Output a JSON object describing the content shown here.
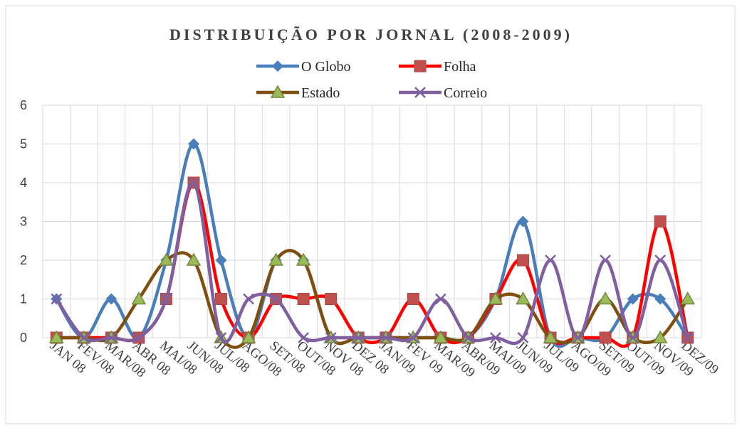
{
  "chart_data": {
    "type": "line",
    "title": "DISTRIBUIÇÃO POR JORNAL   (2008-2009)",
    "categories": [
      "JAN 08",
      "FEV/08",
      "MAR/08",
      "ABR 08",
      "MAI/08",
      "JUN/08",
      "JUL/08",
      "AGO/08",
      "SET/08",
      "OUT/08",
      "NOV 08",
      "DEZ 08",
      "JAN/09",
      "FEV 09",
      "MAR/09",
      "ABR/09",
      "MAI/09",
      "JUN/09",
      "JUL/09",
      "AGO/09",
      "SET/09",
      "OUT/09",
      "NOV/09",
      "DEZ/09"
    ],
    "series": [
      {
        "name": "O Globo",
        "color": "#4a7ebb",
        "marker": "diamond",
        "values": [
          1,
          0,
          1,
          0,
          2,
          5,
          2,
          0,
          2,
          2,
          0,
          0,
          0,
          0,
          0,
          0,
          1,
          3,
          0,
          0,
          0,
          1,
          1,
          0
        ]
      },
      {
        "name": "Folha",
        "color": "#ff0000",
        "marker": "square",
        "values": [
          0,
          0,
          0,
          0,
          1,
          4,
          1,
          0,
          1,
          1,
          1,
          0,
          0,
          1,
          0,
          0,
          1,
          2,
          0,
          0,
          0,
          0,
          3,
          0
        ]
      },
      {
        "name": "Estado",
        "color": "#7f4f10",
        "marker": "triangle",
        "values": [
          0,
          0,
          0,
          1,
          2,
          2,
          0,
          0,
          2,
          2,
          0,
          0,
          0,
          0,
          0,
          0,
          1,
          1,
          0,
          0,
          1,
          0,
          0,
          1
        ]
      },
      {
        "name": "Correio",
        "color": "#7f5fa0",
        "marker": "x",
        "values": [
          1,
          0,
          0,
          0,
          1,
          4,
          0,
          1,
          1,
          0,
          0,
          0,
          0,
          0,
          1,
          0,
          0,
          0,
          2,
          0,
          2,
          0,
          2,
          0
        ]
      }
    ],
    "ylim": [
      0,
      6
    ],
    "yticks": [
      0,
      1,
      2,
      3,
      4,
      5,
      6
    ],
    "grid": true,
    "smooth": true,
    "legend": "top"
  }
}
